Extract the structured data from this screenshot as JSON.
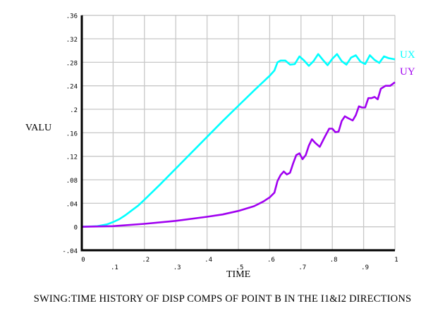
{
  "chart_data": {
    "type": "line",
    "title": "SWING:TIME HISTORY OF DISP COMPS OF POINT B IN THE I1&I2 DIRECTIONS",
    "xlabel": "TIME",
    "ylabel": "VALU",
    "xlim": [
      0,
      1
    ],
    "ylim": [
      -0.04,
      0.36
    ],
    "grid": true,
    "legend_position": "right-inline",
    "x_ticks": [
      "0",
      ".1",
      ".2",
      ".3",
      ".4",
      ".5",
      ".6",
      ".7",
      ".8",
      ".9",
      "1"
    ],
    "y_ticks": [
      "-.04",
      "0",
      ".04",
      ".08",
      ".12",
      ".16",
      ".2",
      ".24",
      ".28",
      ".32",
      ".36"
    ],
    "series": [
      {
        "name": "UX",
        "color": "#00ffff",
        "x": [
          0,
          0.05,
          0.08,
          0.1,
          0.12,
          0.14,
          0.16,
          0.18,
          0.2,
          0.25,
          0.3,
          0.35,
          0.4,
          0.45,
          0.5,
          0.55,
          0.6,
          0.615,
          0.625,
          0.635,
          0.65,
          0.665,
          0.68,
          0.695,
          0.71,
          0.725,
          0.74,
          0.755,
          0.77,
          0.785,
          0.8,
          0.815,
          0.83,
          0.845,
          0.86,
          0.875,
          0.89,
          0.905,
          0.92,
          0.935,
          0.95,
          0.965,
          0.98,
          1.0
        ],
        "y": [
          0,
          0.001,
          0.004,
          0.008,
          0.013,
          0.02,
          0.028,
          0.036,
          0.046,
          0.072,
          0.099,
          0.126,
          0.153,
          0.18,
          0.206,
          0.232,
          0.257,
          0.266,
          0.28,
          0.283,
          0.283,
          0.276,
          0.277,
          0.29,
          0.283,
          0.274,
          0.282,
          0.294,
          0.284,
          0.275,
          0.286,
          0.294,
          0.282,
          0.276,
          0.288,
          0.292,
          0.281,
          0.277,
          0.292,
          0.284,
          0.279,
          0.29,
          0.287,
          0.285
        ]
      },
      {
        "name": "UY",
        "color": "#a000f0",
        "x": [
          0,
          0.1,
          0.2,
          0.3,
          0.4,
          0.45,
          0.5,
          0.55,
          0.58,
          0.6,
          0.615,
          0.625,
          0.635,
          0.645,
          0.655,
          0.665,
          0.675,
          0.685,
          0.695,
          0.705,
          0.715,
          0.725,
          0.735,
          0.745,
          0.76,
          0.775,
          0.79,
          0.8,
          0.81,
          0.82,
          0.83,
          0.84,
          0.85,
          0.865,
          0.875,
          0.885,
          0.895,
          0.905,
          0.915,
          0.925,
          0.935,
          0.945,
          0.955,
          0.97,
          0.985,
          1.0
        ],
        "y": [
          0,
          0.001,
          0.005,
          0.01,
          0.017,
          0.021,
          0.027,
          0.035,
          0.043,
          0.05,
          0.058,
          0.078,
          0.088,
          0.094,
          0.089,
          0.092,
          0.108,
          0.122,
          0.125,
          0.115,
          0.122,
          0.138,
          0.149,
          0.143,
          0.136,
          0.152,
          0.167,
          0.167,
          0.161,
          0.162,
          0.18,
          0.188,
          0.185,
          0.181,
          0.19,
          0.205,
          0.203,
          0.203,
          0.219,
          0.219,
          0.221,
          0.217,
          0.235,
          0.24,
          0.24,
          0.246
        ]
      }
    ]
  },
  "labels": {
    "ylabel": "VALU",
    "xlabel": "TIME",
    "title": "SWING:TIME HISTORY OF DISP COMPS OF POINT B IN THE I1&I2 DIRECTIONS",
    "legend_ux": "UX",
    "legend_uy": "UY"
  }
}
